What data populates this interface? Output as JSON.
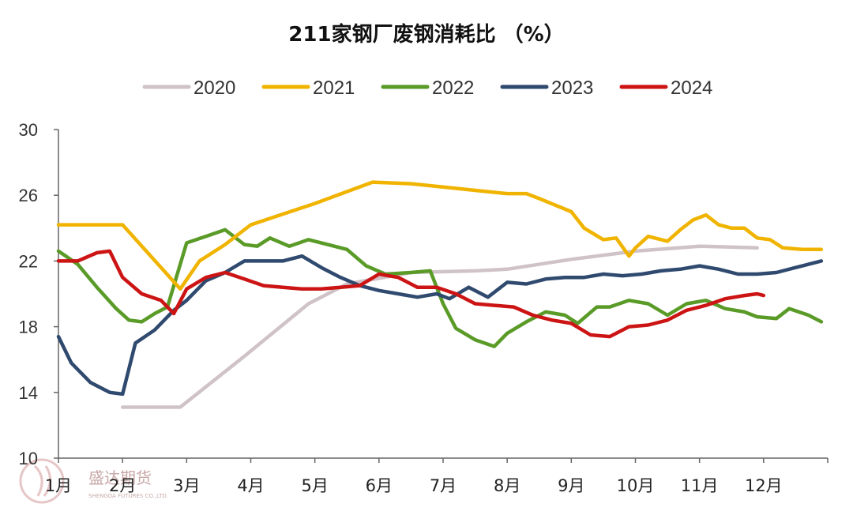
{
  "chart_data": {
    "type": "line",
    "title": "211家钢厂废钢消耗比 （%）",
    "xlabel": "",
    "ylabel": "",
    "ylim": [
      10,
      30
    ],
    "yticks": [
      10,
      14,
      18,
      22,
      26,
      30
    ],
    "grid": false,
    "legend_position": "top",
    "xtick_labels": [
      "1月",
      "2月",
      "3月",
      "4月",
      "5月",
      "6月",
      "7月",
      "8月",
      "9月",
      "10月",
      "11月",
      "12月"
    ],
    "watermark": {
      "name": "盛达期货",
      "sub": "SHENGDA FUTURES CO.,LTD."
    },
    "series": [
      {
        "name": "2020",
        "color": "#d0c3c7",
        "x": [
          2.0,
          2.9,
          3.9,
          4.9,
          5.5,
          6.5,
          7.5,
          8.0,
          9.0,
          10.0,
          11.0,
          11.9
        ],
        "values": [
          13.1,
          13.1,
          16.2,
          19.4,
          20.6,
          21.3,
          21.4,
          21.5,
          22.1,
          22.6,
          22.9,
          22.8
        ]
      },
      {
        "name": "2021",
        "color": "#f0b400",
        "x": [
          1.0,
          1.5,
          2.0,
          2.9,
          3.2,
          3.6,
          4.0,
          5.0,
          5.9,
          6.5,
          7.0,
          7.5,
          8.0,
          8.3,
          8.5,
          9.0,
          9.2,
          9.5,
          9.7,
          9.9,
          10.0,
          10.2,
          10.5,
          10.7,
          10.9,
          11.1,
          11.3,
          11.5,
          11.7,
          11.9,
          12.1,
          12.3,
          12.6,
          12.8,
          12.9
        ],
        "values": [
          24.2,
          24.2,
          24.2,
          20.3,
          22.0,
          23.0,
          24.2,
          25.5,
          26.8,
          26.7,
          26.5,
          26.3,
          26.1,
          26.1,
          25.8,
          25.0,
          24.0,
          23.3,
          23.4,
          22.3,
          22.8,
          23.5,
          23.2,
          23.9,
          24.5,
          24.8,
          24.2,
          24.0,
          24.0,
          23.4,
          23.3,
          22.8,
          22.7,
          22.7,
          22.7
        ]
      },
      {
        "name": "2022",
        "color": "#5a9b28",
        "x": [
          1.0,
          1.3,
          1.6,
          1.9,
          2.1,
          2.3,
          2.5,
          2.7,
          3.0,
          3.3,
          3.6,
          3.9,
          4.1,
          4.3,
          4.6,
          4.9,
          5.2,
          5.5,
          5.8,
          6.1,
          6.5,
          6.8,
          7.0,
          7.2,
          7.5,
          7.8,
          8.0,
          8.3,
          8.6,
          8.9,
          9.1,
          9.4,
          9.6,
          9.9,
          10.2,
          10.5,
          10.8,
          11.1,
          11.4,
          11.7,
          11.9,
          12.2,
          12.4,
          12.7,
          12.9
        ],
        "values": [
          22.6,
          21.8,
          20.4,
          19.1,
          18.4,
          18.3,
          18.8,
          19.2,
          23.1,
          23.5,
          23.9,
          23.0,
          22.9,
          23.4,
          22.9,
          23.3,
          23.0,
          22.7,
          21.7,
          21.2,
          21.3,
          21.4,
          19.4,
          17.9,
          17.2,
          16.8,
          17.6,
          18.3,
          18.9,
          18.7,
          18.2,
          19.2,
          19.2,
          19.6,
          19.4,
          18.7,
          19.4,
          19.6,
          19.1,
          18.9,
          18.6,
          18.5,
          19.1,
          18.7,
          18.3
        ]
      },
      {
        "name": "2023",
        "color": "#2f4a6e",
        "x": [
          1.0,
          1.2,
          1.5,
          1.8,
          2.0,
          2.2,
          2.5,
          2.8,
          3.0,
          3.3,
          3.6,
          3.9,
          4.2,
          4.5,
          4.8,
          5.1,
          5.4,
          5.7,
          6.0,
          6.3,
          6.6,
          6.9,
          7.1,
          7.4,
          7.7,
          8.0,
          8.3,
          8.6,
          8.9,
          9.2,
          9.5,
          9.8,
          10.1,
          10.4,
          10.7,
          11.0,
          11.3,
          11.6,
          11.9,
          12.2,
          12.5,
          12.7,
          12.9
        ],
        "values": [
          17.4,
          15.8,
          14.6,
          14.0,
          13.9,
          17.0,
          17.8,
          19.0,
          19.6,
          20.8,
          21.3,
          22.0,
          22.0,
          22.0,
          22.3,
          21.6,
          21.0,
          20.5,
          20.2,
          20.0,
          19.8,
          20.0,
          19.7,
          20.4,
          19.8,
          20.7,
          20.6,
          20.9,
          21.0,
          21.0,
          21.2,
          21.1,
          21.2,
          21.4,
          21.5,
          21.7,
          21.5,
          21.2,
          21.2,
          21.3,
          21.6,
          21.8,
          22.0
        ]
      },
      {
        "name": "2024",
        "color": "#cc1414",
        "x": [
          1.0,
          1.3,
          1.6,
          1.8,
          2.0,
          2.3,
          2.6,
          2.8,
          3.0,
          3.3,
          3.6,
          3.9,
          4.2,
          4.5,
          4.8,
          5.1,
          5.4,
          5.7,
          6.0,
          6.3,
          6.6,
          6.9,
          7.2,
          7.5,
          7.8,
          8.1,
          8.4,
          8.7,
          9.0,
          9.3,
          9.6,
          9.9,
          10.2,
          10.5,
          10.8,
          11.1,
          11.4,
          11.7,
          11.9,
          12.0
        ],
        "values": [
          22.0,
          22.0,
          22.5,
          22.6,
          21.0,
          20.0,
          19.6,
          18.8,
          20.3,
          21.0,
          21.3,
          20.9,
          20.5,
          20.4,
          20.3,
          20.3,
          20.4,
          20.5,
          21.2,
          21.0,
          20.4,
          20.4,
          20.0,
          19.4,
          19.3,
          19.2,
          18.7,
          18.4,
          18.2,
          17.5,
          17.4,
          18.0,
          18.1,
          18.4,
          19.0,
          19.3,
          19.7,
          19.9,
          20.0,
          19.9
        ]
      }
    ]
  }
}
